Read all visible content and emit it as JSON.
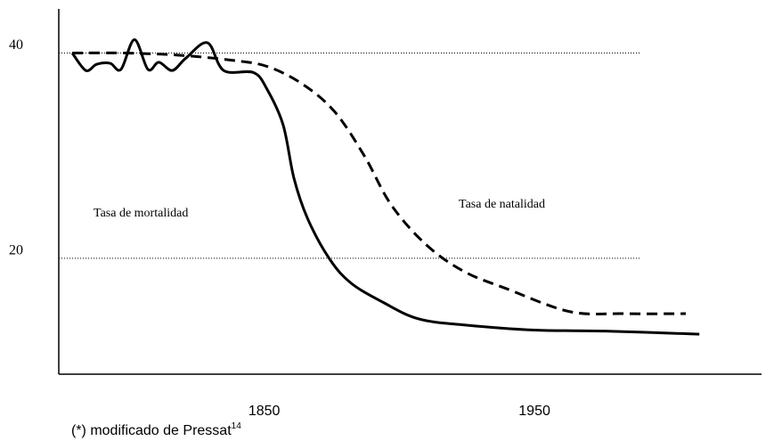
{
  "chart_data": {
    "type": "line",
    "xlim": [
      1774,
      2034
    ],
    "ylim": [
      8.7,
      44.3
    ],
    "xticks": [
      1850,
      1950
    ],
    "yticks": [
      20,
      40
    ],
    "grid": true,
    "series": [
      {
        "name": "Tasa de mortalidad",
        "color": "#000000",
        "dashed": false,
        "x": [
          1779,
          1784,
          1788,
          1793,
          1797,
          1802,
          1807,
          1811,
          1816,
          1821,
          1829,
          1835,
          1846,
          1851,
          1857,
          1861,
          1866,
          1874,
          1882,
          1894,
          1907,
          1924,
          1950,
          1976,
          2011
        ],
        "values": [
          40.0,
          38.3,
          38.9,
          39.0,
          38.4,
          41.3,
          38.4,
          39.1,
          38.3,
          39.5,
          41.0,
          38.3,
          38.1,
          36.5,
          33.0,
          27.8,
          23.9,
          20.0,
          17.6,
          15.7,
          14.1,
          13.5,
          13.0,
          12.9,
          12.6
        ]
      },
      {
        "name": "Tasa de natalidad",
        "color": "#000000",
        "dashed": true,
        "x": [
          1779,
          1798,
          1818,
          1838,
          1851,
          1864,
          1876,
          1887,
          1897,
          1910,
          1924,
          1940,
          1963,
          1983,
          2006
        ],
        "values": [
          40.0,
          40.0,
          39.8,
          39.3,
          38.7,
          37.0,
          34.3,
          30.0,
          25.2,
          21.3,
          18.7,
          17.0,
          14.8,
          14.6,
          14.6
        ]
      }
    ],
    "footnote": {
      "text": "(*) modificado  de Pressat",
      "sup": "14"
    }
  }
}
